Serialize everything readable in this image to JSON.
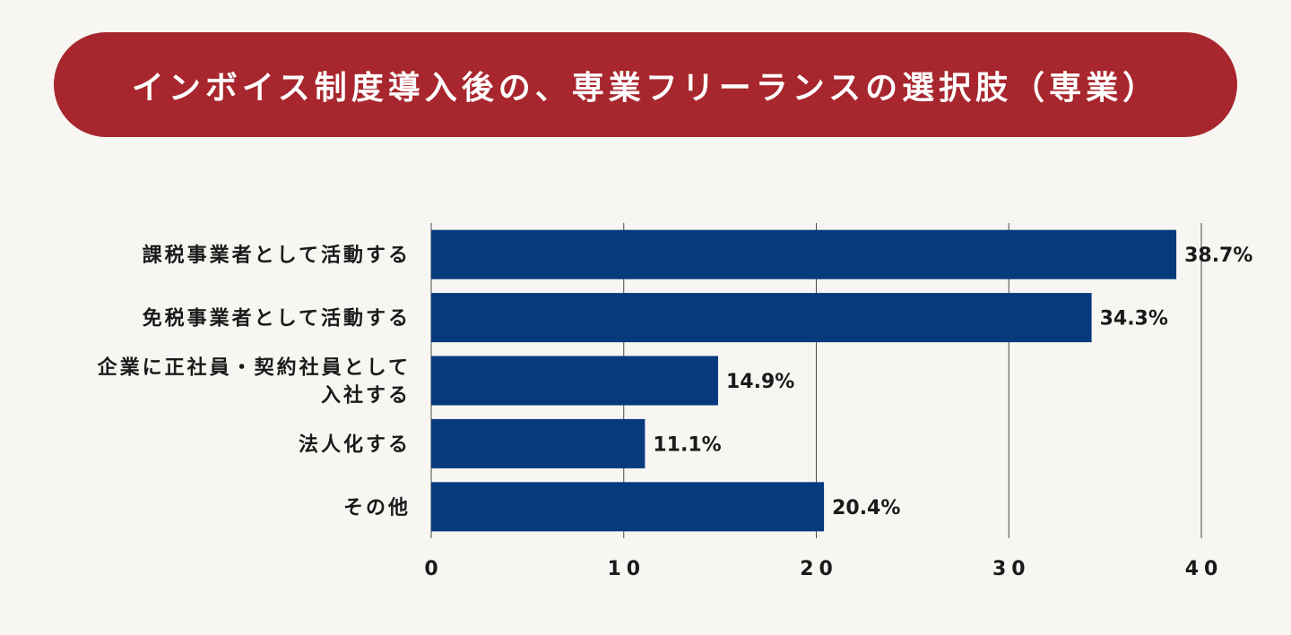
{
  "title": "インボイス制度導入後の、専業フリーランスの選択肢（専業）",
  "colors": {
    "banner": "#a8262d",
    "bar": "#063a7d",
    "grid": "#4a4a4a",
    "background": "#f7f6f2"
  },
  "chart_data": {
    "type": "bar",
    "orientation": "horizontal",
    "categories": [
      [
        "課税事業者として活動する"
      ],
      [
        "免税事業者として活動する"
      ],
      [
        "企業に正社員・契約社員として",
        "入社する"
      ],
      [
        "法人化する"
      ],
      [
        "その他"
      ]
    ],
    "values": [
      38.7,
      34.3,
      14.9,
      11.1,
      20.4
    ],
    "value_labels": [
      "38.7%",
      "34.3%",
      "14.9%",
      "11.1%",
      "20.4%"
    ],
    "xlim": [
      0,
      40
    ],
    "ticks": [
      0,
      10,
      20,
      30,
      40
    ],
    "tick_labels": [
      "0",
      "10",
      "20",
      "30",
      "40"
    ],
    "grid": true
  }
}
